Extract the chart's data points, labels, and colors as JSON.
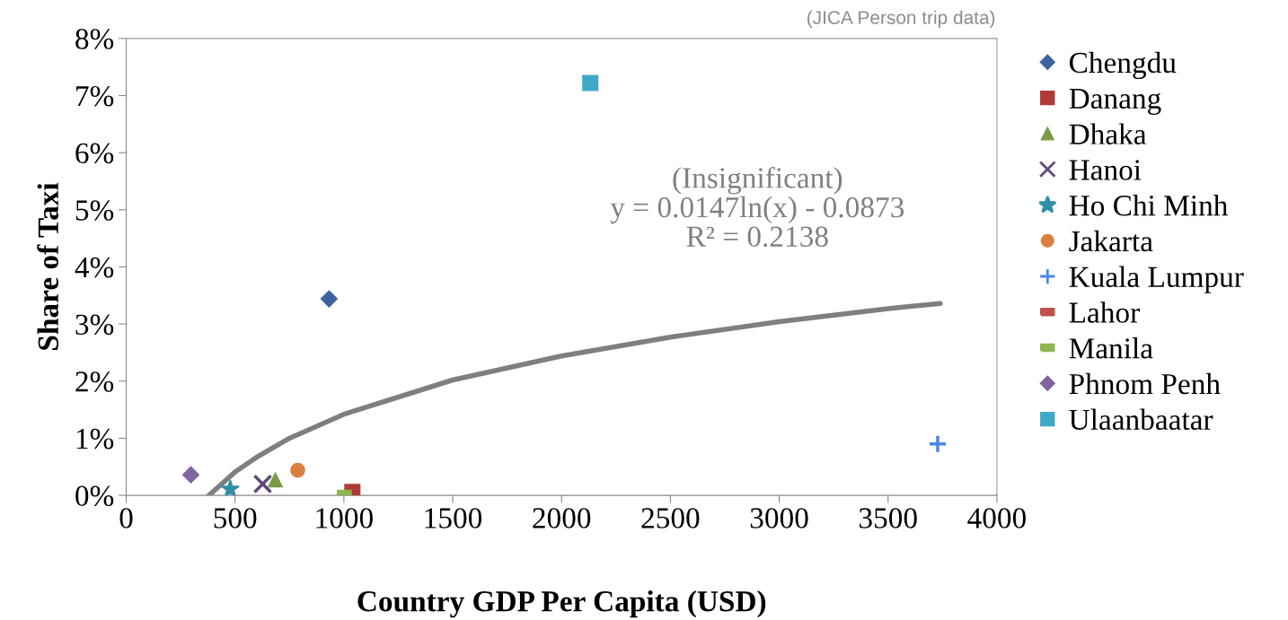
{
  "chart_data": {
    "type": "scatter",
    "xlabel": "Country GDP Per Capita (USD)",
    "ylabel": "Share of Taxi",
    "xlim": [
      0,
      4000
    ],
    "xticks": [
      0,
      500,
      1000,
      1500,
      2000,
      2500,
      3000,
      3500,
      4000
    ],
    "ylim": [
      0,
      8
    ],
    "yticks": [
      {
        "value": 0,
        "label": "0%"
      },
      {
        "value": 1,
        "label": "1%"
      },
      {
        "value": 2,
        "label": "2%"
      },
      {
        "value": 3,
        "label": "3%"
      },
      {
        "value": 4,
        "label": "4%"
      },
      {
        "value": 5,
        "label": "5%"
      },
      {
        "value": 6,
        "label": "6%"
      },
      {
        "value": 7,
        "label": "7%"
      },
      {
        "value": 8,
        "label": "8%"
      }
    ],
    "grid": false,
    "legend": "right",
    "series": [
      {
        "name": "Chengdu",
        "color": "#3a63a0",
        "marker": "diamond",
        "x": [
          932
        ],
        "values": [
          3.44
        ]
      },
      {
        "name": "Danang",
        "color": "#b03a35",
        "marker": "square",
        "x": [
          1039
        ],
        "values": [
          0.06
        ]
      },
      {
        "name": "Dhaka",
        "color": "#7a9a45",
        "marker": "triangle",
        "x": [
          685
        ],
        "values": [
          0.27
        ]
      },
      {
        "name": "Hanoi",
        "color": "#604a7b",
        "marker": "cross",
        "x": [
          627
        ],
        "values": [
          0.2
        ]
      },
      {
        "name": "Ho Chi Minh",
        "color": "#2f8fa8",
        "marker": "star",
        "x": [
          478
        ],
        "values": [
          0.11
        ]
      },
      {
        "name": "Jakarta",
        "color": "#d9803e",
        "marker": "circle",
        "x": [
          788
        ],
        "values": [
          0.44
        ]
      },
      {
        "name": "Kuala Lumpur",
        "color": "#4a86e8",
        "marker": "plus",
        "x": [
          3728
        ],
        "values": [
          0.9
        ]
      },
      {
        "name": "Lahor",
        "color": "#c0504d",
        "x": [
          null
        ],
        "values": [
          null
        ]
      },
      {
        "name": "Manila",
        "color": "#8db64e",
        "x": [
          1002
        ],
        "values": [
          0.03
        ]
      },
      {
        "name": "Phnom Penh",
        "color": "#8064a2",
        "marker": "diamond",
        "x": [
          297
        ],
        "values": [
          0.36
        ]
      },
      {
        "name": "Ulaanbaatar",
        "color": "#3fa9c5",
        "marker": "square",
        "x": [
          2132
        ],
        "values": [
          7.22
        ]
      },
      {
        "type": "line",
        "color": "#7f7f7f",
        "marker": "none",
        "x": [
          380,
          500,
          600,
          750,
          1000,
          1500,
          2000,
          2500,
          3000,
          3500,
          3740
        ],
        "values": [
          0,
          0.41,
          0.67,
          1.0,
          1.42,
          2.02,
          2.44,
          2.77,
          3.04,
          3.27,
          3.36
        ]
      }
    ],
    "annotations": [
      "(JICA Person trip data)",
      "(Insignificant)\ny = 0.0147ln(x) - 0.0873\nR² = 0.2138"
    ]
  }
}
